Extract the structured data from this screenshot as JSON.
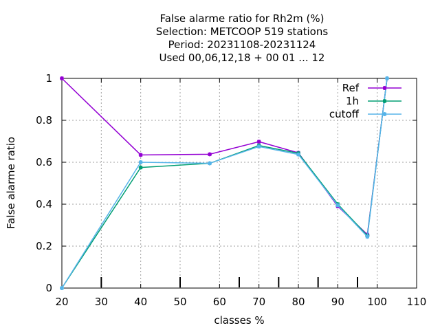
{
  "chart_data": {
    "type": "line",
    "title_lines": [
      "False alarme ratio  for Rh2m (%)",
      "Selection: METCOOP    519 stations",
      "Period: 20231108-20231124",
      "Used  00,06,12,18 + 00 01 ... 12"
    ],
    "xlabel": "classes %",
    "ylabel": "False alarme ratio",
    "xlim": [
      20,
      110
    ],
    "ylim": [
      0,
      1
    ],
    "xticks": [
      20,
      30,
      40,
      50,
      60,
      70,
      80,
      90,
      100,
      110
    ],
    "yticks": [
      0,
      0.2,
      0.4,
      0.6,
      0.8,
      1
    ],
    "ytick_labels": [
      "0",
      "0.2",
      "0.4",
      "0.6",
      "0.8",
      "1"
    ],
    "grid": true,
    "legend_position": "top-right",
    "class_markers": [
      30,
      50,
      65,
      75,
      85,
      95
    ],
    "series": [
      {
        "name": "Ref",
        "color": "#9400d3",
        "x": [
          20,
          40,
          57.5,
          70,
          80,
          90,
          97.5,
          102.5
        ],
        "y": [
          1.0,
          0.635,
          0.638,
          0.698,
          0.645,
          0.39,
          0.255,
          1.0
        ]
      },
      {
        "name": "1h",
        "color": "#009e73",
        "x": [
          20,
          40,
          57.5,
          70,
          80,
          90,
          97.5,
          102.5
        ],
        "y": [
          0.0,
          0.575,
          0.595,
          0.68,
          0.643,
          0.4,
          0.25,
          1.0
        ]
      },
      {
        "name": "cutoff",
        "color": "#56b4e9",
        "x": [
          20,
          40,
          57.5,
          70,
          80,
          90,
          97.5,
          102.5
        ],
        "y": [
          0.0,
          0.6,
          0.595,
          0.675,
          0.637,
          0.395,
          0.245,
          1.0
        ]
      }
    ]
  }
}
